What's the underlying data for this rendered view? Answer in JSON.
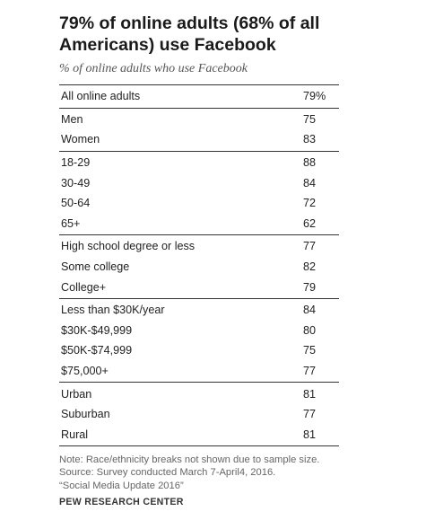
{
  "chart_data": {
    "type": "table",
    "title": "79% of online adults (68% of all Americans) use Facebook",
    "subtitle": "% of online adults who use Facebook",
    "groups": [
      {
        "rows": [
          {
            "label": "All online adults",
            "value": "79%"
          }
        ]
      },
      {
        "rows": [
          {
            "label": "Men",
            "value": "75"
          },
          {
            "label": "Women",
            "value": "83"
          }
        ]
      },
      {
        "rows": [
          {
            "label": "18-29",
            "value": "88"
          },
          {
            "label": "30-49",
            "value": "84"
          },
          {
            "label": "50-64",
            "value": "72"
          },
          {
            "label": "65+",
            "value": "62"
          }
        ]
      },
      {
        "rows": [
          {
            "label": "High school degree or less",
            "value": "77"
          },
          {
            "label": "Some college",
            "value": "82"
          },
          {
            "label": "College+",
            "value": "79"
          }
        ]
      },
      {
        "rows": [
          {
            "label": "Less than $30K/year",
            "value": "84"
          },
          {
            "label": "$30K-$49,999",
            "value": "80"
          },
          {
            "label": "$50K-$74,999",
            "value": "75"
          },
          {
            "label": "$75,000+",
            "value": "77"
          }
        ]
      },
      {
        "rows": [
          {
            "label": "Urban",
            "value": "81"
          },
          {
            "label": "Suburban",
            "value": "77"
          },
          {
            "label": "Rural",
            "value": "81"
          }
        ]
      }
    ],
    "notes": [
      "Note: Race/ethnicity breaks not shown due to sample size.",
      "Source: Survey conducted March 7-April4, 2016.",
      "“Social Media Update 2016”"
    ],
    "source_brand": "PEW RESEARCH CENTER"
  }
}
